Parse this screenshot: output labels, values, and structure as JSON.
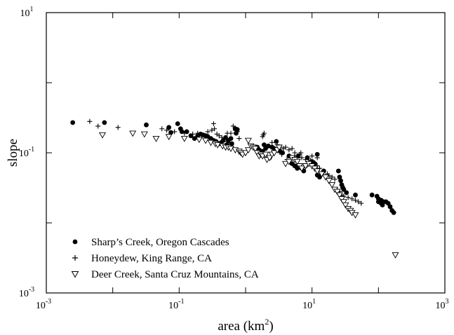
{
  "chart_data": {
    "type": "scatter",
    "xscale": "log",
    "yscale": "log",
    "xlim": [
      0.001,
      1000
    ],
    "ylim": [
      0.001,
      10
    ],
    "xlabel": "area (km",
    "xlabel_sup": "2",
    "xlabel_close": ")",
    "ylabel": "slope",
    "grid": false,
    "legend_position": "bottom-left",
    "x_ticks": [
      {
        "base": "10",
        "exp": "-3"
      },
      {
        "base": "10",
        "exp": "-1"
      },
      {
        "base": "10",
        "exp": "1"
      },
      {
        "base": "10",
        "exp": "3"
      }
    ],
    "y_ticks": [
      {
        "base": "10",
        "exp": "-3"
      },
      {
        "base": "10",
        "exp": "-1"
      },
      {
        "base": "10",
        "exp": "1"
      }
    ],
    "series": [
      {
        "name": "Sharp’s Creek, Oregon Cascades",
        "marker": "filled-circle",
        "points": [
          [
            0.0025,
            0.27
          ],
          [
            0.0075,
            0.27
          ],
          [
            0.032,
            0.25
          ],
          [
            0.07,
            0.23
          ],
          [
            0.095,
            0.26
          ],
          [
            0.105,
            0.22
          ],
          [
            0.075,
            0.195
          ],
          [
            0.11,
            0.2
          ],
          [
            0.13,
            0.2
          ],
          [
            0.15,
            0.175
          ],
          [
            0.17,
            0.16
          ],
          [
            0.19,
            0.175
          ],
          [
            0.21,
            0.185
          ],
          [
            0.23,
            0.18
          ],
          [
            0.25,
            0.175
          ],
          [
            0.27,
            0.17
          ],
          [
            0.3,
            0.16
          ],
          [
            0.33,
            0.15
          ],
          [
            0.36,
            0.145
          ],
          [
            0.4,
            0.135
          ],
          [
            0.43,
            0.14
          ],
          [
            0.46,
            0.15
          ],
          [
            0.5,
            0.165
          ],
          [
            0.55,
            0.15
          ],
          [
            0.6,
            0.16
          ],
          [
            0.7,
            0.22
          ],
          [
            0.75,
            0.215
          ],
          [
            0.72,
            0.19
          ],
          [
            0.62,
            0.135
          ],
          [
            0.52,
            0.13
          ],
          [
            1.5,
            0.12
          ],
          [
            1.6,
            0.11
          ],
          [
            1.8,
            0.105
          ],
          [
            2.0,
            0.115
          ],
          [
            2.2,
            0.125
          ],
          [
            2.5,
            0.12
          ],
          [
            2.7,
            0.115
          ],
          [
            3.0,
            0.11
          ],
          [
            3.3,
            0.105
          ],
          [
            3.6,
            0.1
          ],
          [
            2.9,
            0.145
          ],
          [
            1.9,
            0.13
          ],
          [
            2.3,
            0.085
          ],
          [
            4.5,
            0.09
          ],
          [
            5.0,
            0.07
          ],
          [
            5.5,
            0.065
          ],
          [
            6.0,
            0.06
          ],
          [
            6.5,
            0.065
          ],
          [
            7.0,
            0.06
          ],
          [
            7.5,
            0.055
          ],
          [
            8.0,
            0.065
          ],
          [
            9.0,
            0.07
          ],
          [
            10,
            0.075
          ],
          [
            11,
            0.07
          ],
          [
            12,
            0.095
          ],
          [
            8.5,
            0.085
          ],
          [
            6.2,
            0.09
          ],
          [
            12,
            0.048
          ],
          [
            13,
            0.045
          ],
          [
            14,
            0.05
          ],
          [
            15,
            0.055
          ],
          [
            25,
            0.055
          ],
          [
            26,
            0.045
          ],
          [
            27,
            0.04
          ],
          [
            28,
            0.035
          ],
          [
            29,
            0.032
          ],
          [
            30,
            0.03
          ],
          [
            33,
            0.027
          ],
          [
            45,
            0.025
          ],
          [
            80,
            0.025
          ],
          [
            95,
            0.024
          ],
          [
            100,
            0.02
          ],
          [
            110,
            0.019
          ],
          [
            115,
            0.018
          ],
          [
            120,
            0.02
          ],
          [
            130,
            0.02
          ],
          [
            140,
            0.019
          ],
          [
            150,
            0.017
          ],
          [
            160,
            0.015
          ],
          [
            170,
            0.014
          ],
          [
            100,
            0.022
          ],
          [
            110,
            0.021
          ]
        ]
      },
      {
        "name": "Honeydew, King Range, CA",
        "marker": "plus",
        "points": [
          [
            0.0045,
            0.28
          ],
          [
            0.006,
            0.24
          ],
          [
            0.012,
            0.23
          ],
          [
            0.055,
            0.22
          ],
          [
            0.065,
            0.21
          ],
          [
            0.085,
            0.2
          ],
          [
            0.12,
            0.19
          ],
          [
            0.13,
            0.2
          ],
          [
            0.16,
            0.185
          ],
          [
            0.19,
            0.19
          ],
          [
            0.22,
            0.18
          ],
          [
            0.25,
            0.17
          ],
          [
            0.27,
            0.2
          ],
          [
            0.31,
            0.21
          ],
          [
            0.34,
            0.22
          ],
          [
            0.37,
            0.185
          ],
          [
            0.4,
            0.175
          ],
          [
            0.44,
            0.165
          ],
          [
            0.48,
            0.155
          ],
          [
            0.52,
            0.145
          ],
          [
            0.56,
            0.14
          ],
          [
            0.6,
            0.19
          ],
          [
            0.65,
            0.24
          ],
          [
            0.7,
            0.21
          ],
          [
            0.75,
            0.2
          ],
          [
            0.33,
            0.26
          ],
          [
            0.53,
            0.19
          ],
          [
            0.8,
            0.16
          ],
          [
            1.8,
            0.17
          ],
          [
            1.85,
            0.18
          ],
          [
            1.9,
            0.19
          ],
          [
            2.5,
            0.14
          ],
          [
            3.0,
            0.13
          ],
          [
            3.3,
            0.12
          ],
          [
            3.7,
            0.115
          ],
          [
            4.0,
            0.12
          ],
          [
            4.5,
            0.11
          ],
          [
            5.0,
            0.115
          ],
          [
            5.5,
            0.1
          ],
          [
            6.0,
            0.09
          ],
          [
            6.5,
            0.095
          ],
          [
            7.0,
            0.085
          ],
          [
            8.0,
            0.08
          ],
          [
            9.0,
            0.075
          ],
          [
            10,
            0.09
          ],
          [
            11,
            0.072
          ],
          [
            12,
            0.085
          ],
          [
            3.5,
            0.095
          ],
          [
            4.2,
            0.08
          ],
          [
            4.8,
            0.085
          ],
          [
            5.5,
            0.09
          ],
          [
            6.8,
            0.1
          ],
          [
            8.5,
            0.085
          ],
          [
            9.5,
            0.078
          ],
          [
            10,
            0.075
          ],
          [
            11,
            0.07
          ],
          [
            12,
            0.065
          ],
          [
            13,
            0.06
          ],
          [
            15,
            0.055
          ],
          [
            17,
            0.05
          ],
          [
            18,
            0.047
          ],
          [
            20,
            0.045
          ],
          [
            22,
            0.042
          ],
          [
            24,
            0.03
          ],
          [
            26,
            0.028
          ],
          [
            28,
            0.025
          ],
          [
            30,
            0.024
          ],
          [
            35,
            0.023
          ],
          [
            40,
            0.022
          ],
          [
            45,
            0.021
          ],
          [
            50,
            0.02
          ],
          [
            55,
            0.019
          ]
        ]
      },
      {
        "name": "Deer Creek, Santa Cruz Mountains, CA",
        "marker": "open-triangle-down",
        "points": [
          [
            0.007,
            0.18
          ],
          [
            0.02,
            0.19
          ],
          [
            0.03,
            0.185
          ],
          [
            0.045,
            0.16
          ],
          [
            0.07,
            0.17
          ],
          [
            0.12,
            0.16
          ],
          [
            0.2,
            0.155
          ],
          [
            0.25,
            0.15
          ],
          [
            0.3,
            0.14
          ],
          [
            0.35,
            0.135
          ],
          [
            0.38,
            0.13
          ],
          [
            0.45,
            0.125
          ],
          [
            0.5,
            0.12
          ],
          [
            0.55,
            0.12
          ],
          [
            0.6,
            0.115
          ],
          [
            0.7,
            0.11
          ],
          [
            0.8,
            0.105
          ],
          [
            0.85,
            0.1
          ],
          [
            0.9,
            0.095
          ],
          [
            1.0,
            0.1
          ],
          [
            1.1,
            0.11
          ],
          [
            1.2,
            0.125
          ],
          [
            1.3,
            0.12
          ],
          [
            1.4,
            0.115
          ],
          [
            1.5,
            0.1
          ],
          [
            1.6,
            0.09
          ],
          [
            1.7,
            0.095
          ],
          [
            1.8,
            0.09
          ],
          [
            2.0,
            0.095
          ],
          [
            2.1,
            0.08
          ],
          [
            2.3,
            0.085
          ],
          [
            2.5,
            0.095
          ],
          [
            2.7,
            0.1
          ],
          [
            3.0,
            0.11
          ],
          [
            3.2,
            0.12
          ],
          [
            1.1,
            0.15
          ],
          [
            4.0,
            0.07
          ],
          [
            4.5,
            0.075
          ],
          [
            5.0,
            0.085
          ],
          [
            5.5,
            0.08
          ],
          [
            6.0,
            0.075
          ],
          [
            6.5,
            0.065
          ],
          [
            7.0,
            0.06
          ],
          [
            8.0,
            0.065
          ],
          [
            9.0,
            0.07
          ],
          [
            10,
            0.065
          ],
          [
            11,
            0.06
          ],
          [
            12,
            0.055
          ],
          [
            14,
            0.05
          ],
          [
            16,
            0.045
          ],
          [
            18,
            0.04
          ],
          [
            20,
            0.035
          ],
          [
            22,
            0.03
          ],
          [
            24,
            0.028
          ],
          [
            26,
            0.025
          ],
          [
            28,
            0.022
          ],
          [
            30,
            0.02
          ],
          [
            32,
            0.018
          ],
          [
            35,
            0.016
          ],
          [
            38,
            0.015
          ],
          [
            40,
            0.014
          ],
          [
            45,
            0.013
          ],
          [
            180,
            0.0035
          ]
        ]
      }
    ]
  }
}
